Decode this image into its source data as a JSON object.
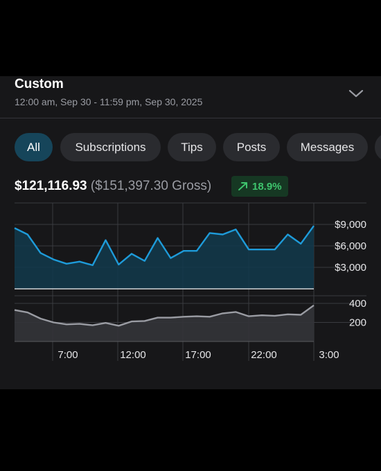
{
  "header": {
    "title": "Custom",
    "date_range": "12:00 am, Sep 30 - 11:59 pm, Sep 30, 2025",
    "expand_icon": "chevron-down-icon"
  },
  "filters": {
    "chips": [
      {
        "label": "All",
        "active": true
      },
      {
        "label": "Subscriptions",
        "active": false
      },
      {
        "label": "Tips",
        "active": false
      },
      {
        "label": "Posts",
        "active": false
      },
      {
        "label": "Messages",
        "active": false
      }
    ]
  },
  "earnings": {
    "net": "$121,116.93",
    "gross": "($151,397.30 Gross)",
    "change": "18.9%",
    "change_icon": "arrow-up-right-icon",
    "change_color": "#3ec46d"
  },
  "chart_data": [
    {
      "type": "area",
      "series": [
        {
          "values": [
            8500,
            7600,
            5000,
            4100,
            3500,
            3800,
            3300,
            6800,
            3400,
            4900,
            3900,
            7100,
            4300,
            5300,
            5300,
            7800,
            7600,
            8300,
            5500,
            5500,
            5500,
            7600,
            6300,
            8800
          ]
        }
      ],
      "y_ticks": [
        "$3,000",
        "$6,000",
        "$9,000"
      ],
      "ylim": [
        0,
        12000
      ],
      "line_color": "#1e9bd9",
      "grid": true
    },
    {
      "type": "area",
      "series": [
        {
          "values": [
            330,
            305,
            240,
            200,
            180,
            185,
            170,
            195,
            165,
            210,
            215,
            250,
            250,
            260,
            265,
            260,
            295,
            310,
            265,
            275,
            270,
            285,
            280,
            380
          ]
        }
      ],
      "y_ticks": [
        "200",
        "400"
      ],
      "ylim": [
        0,
        480
      ],
      "line_color": "#9a9ca3",
      "grid": true
    }
  ],
  "x_axis": {
    "tick_labels": [
      "7:00",
      "12:00",
      "17:00",
      "22:00",
      "3:00"
    ]
  }
}
